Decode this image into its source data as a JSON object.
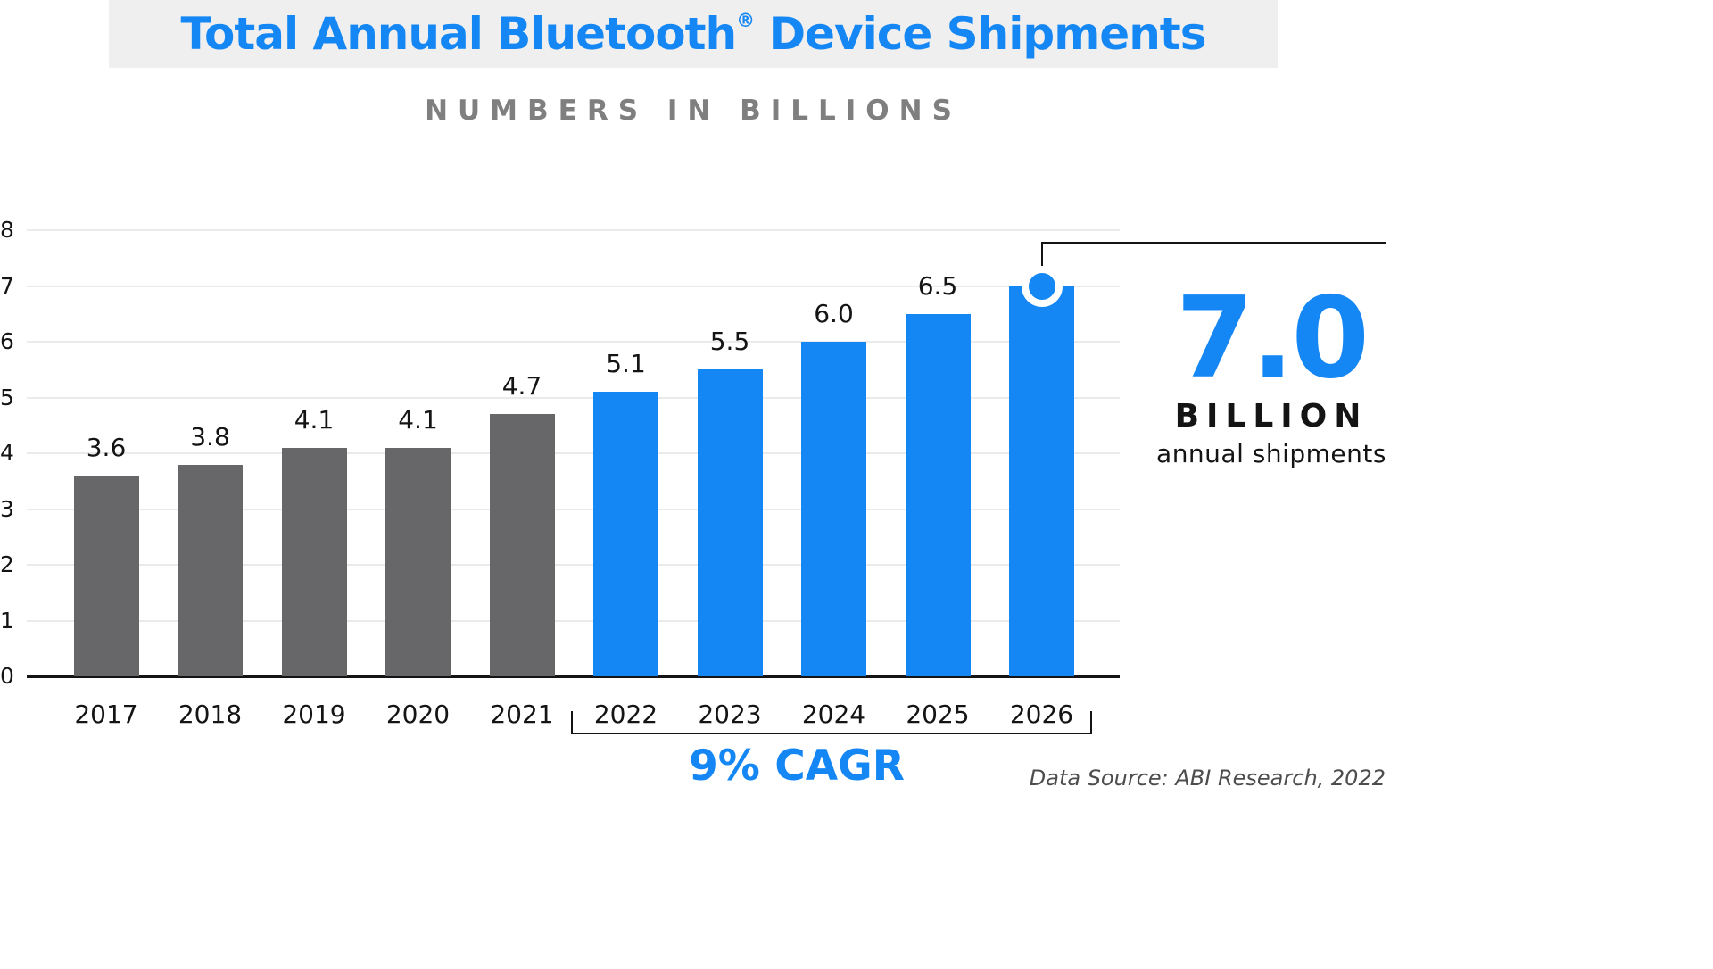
{
  "title_parts": {
    "pre": "Total Annual Bluetooth",
    "reg": "®",
    "post": " Device Shipments"
  },
  "subtitle": "NUMBERS IN BILLIONS",
  "chart_data": {
    "type": "bar",
    "title": "Total Annual Bluetooth® Device Shipments",
    "subtitle": "NUMBERS IN BILLIONS",
    "categories": [
      "2017",
      "2018",
      "2019",
      "2020",
      "2021",
      "2022",
      "2023",
      "2024",
      "2025",
      "2026"
    ],
    "values": [
      3.6,
      3.8,
      4.1,
      4.1,
      4.7,
      5.1,
      5.5,
      6.0,
      6.5,
      7.0
    ],
    "value_labels": [
      "3.6",
      "3.8",
      "4.1",
      "4.1",
      "4.7",
      "5.1",
      "5.5",
      "6.0",
      "6.5",
      ""
    ],
    "bar_colors": [
      "#67676a",
      "#67676a",
      "#67676a",
      "#67676a",
      "#67676a",
      "#1487f4",
      "#1487f4",
      "#1487f4",
      "#1487f4",
      "#1487f4"
    ],
    "xlabel": "",
    "ylabel": "",
    "ylim": [
      0,
      8
    ],
    "yticks": [
      0,
      1,
      2,
      3,
      4,
      5,
      6,
      7,
      8
    ],
    "grid": "horizontal",
    "legend": "none",
    "highlight_marker": {
      "category": "2026",
      "value": 7.0
    }
  },
  "callout": {
    "value": "7.0",
    "unit": "BILLION",
    "caption": "annual shipments"
  },
  "cagr": {
    "label": "9% CAGR",
    "from": "2022",
    "to": "2026"
  },
  "source": "Data Source: ABI Research, 2022",
  "colors": {
    "accent_blue": "#1487f4",
    "bar_gray": "#67676a",
    "title_bg": "#efefef",
    "text_dark": "#141414",
    "subtitle_gray": "#7f7f7f"
  }
}
